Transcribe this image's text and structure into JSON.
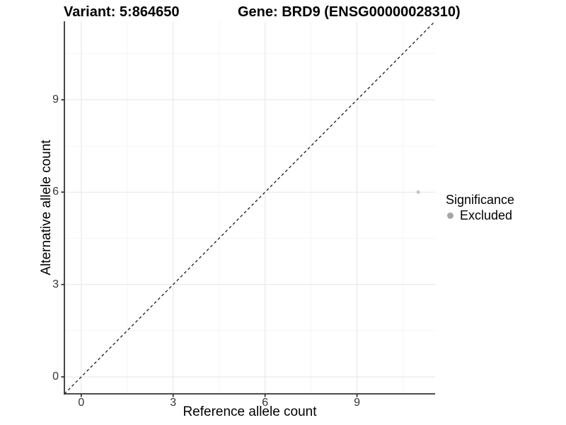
{
  "page": {
    "background": "#ffffff"
  },
  "header": {
    "variant_title": "Variant: 5:864650",
    "gene_title": "Gene: BRD9 (ENSG00000028310)"
  },
  "chart_data": {
    "type": "scatter",
    "title_left": "Variant: 5:864650",
    "title_right": "Gene: BRD9 (ENSG00000028310)",
    "xlabel": "Reference allele count",
    "ylabel": "Alternative allele count",
    "xlim": [
      -0.55,
      11.55
    ],
    "ylim": [
      -0.55,
      11.55
    ],
    "x_ticks": [
      0,
      3,
      6,
      9
    ],
    "y_ticks": [
      0,
      3,
      6,
      9
    ],
    "x_minor_gridlines": [
      1.5,
      4.5,
      7.5,
      10.5
    ],
    "y_minor_gridlines": [
      1.5,
      4.5,
      7.5,
      10.5
    ],
    "grid": "major and minor, light gray on white panel",
    "points": [
      {
        "x": 11,
        "y": 6,
        "series": "Excluded"
      }
    ],
    "identity_line": {
      "equation": "y = x",
      "style": "dashed",
      "color": "#1a1a1a"
    },
    "legend": {
      "title": "Significance",
      "position": "right",
      "entries": [
        {
          "label": "Excluded",
          "color": "#a6a6a6"
        }
      ]
    },
    "styles": {
      "point_color": "#c3c3c3",
      "point_radius": 2.5,
      "axis_line_color": "#333333",
      "tick_label_color": "#333333",
      "grid_major_color": "#e8e8e8",
      "grid_minor_color": "#f2f2f2"
    }
  }
}
